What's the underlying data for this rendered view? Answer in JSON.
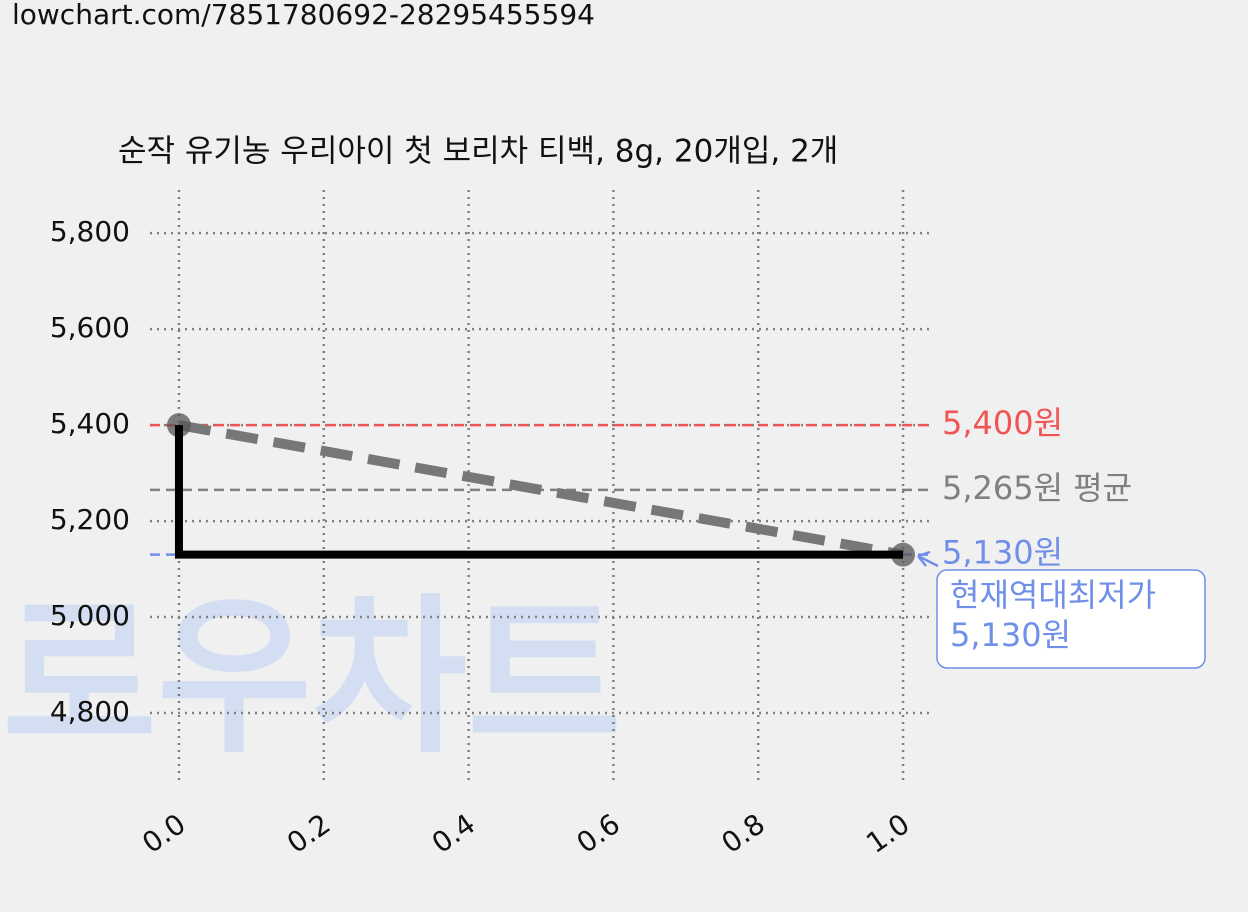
{
  "url": "lowchart.com/7851780692-28295455594",
  "chart_data": {
    "type": "line",
    "title": "순작 유기농 우리아이 첫 보리차 티백, 8g, 20개입, 2개",
    "watermark": "로우차트",
    "series": [
      {
        "color": "#777777",
        "style": "dashed",
        "markers": true,
        "x": [
          0,
          1
        ],
        "values": [
          5400,
          5130
        ]
      },
      {
        "color": "#000000",
        "style": "solid",
        "markers": false,
        "x": [
          0,
          0,
          1
        ],
        "values": [
          5400,
          5130,
          5130
        ]
      }
    ],
    "xlim": [
      -0.04,
      1.04
    ],
    "xticks": [
      {
        "value": 0,
        "label": "0.0"
      },
      {
        "value": 0.2,
        "label": "0.2"
      },
      {
        "value": 0.4,
        "label": "0.4"
      },
      {
        "value": 0.6,
        "label": "0.6"
      },
      {
        "value": 0.8,
        "label": "0.8"
      },
      {
        "value": 1,
        "label": "1.0"
      }
    ],
    "ylim": [
      4650,
      5890
    ],
    "yticks": [
      {
        "value": 4800,
        "label": "4,800"
      },
      {
        "value": 5000,
        "label": "5,000"
      },
      {
        "value": 5200,
        "label": "5,200"
      },
      {
        "value": 5400,
        "label": "5,400"
      },
      {
        "value": 5600,
        "label": "5,600"
      },
      {
        "value": 5800,
        "label": "5,800"
      }
    ],
    "grid": true,
    "hlines": [
      {
        "value": 5400,
        "label": "5,400원",
        "color": "#f05454"
      },
      {
        "value": 5265,
        "label": "5,265원 평균",
        "color": "#808080"
      },
      {
        "value": 5130,
        "label": "5,130원",
        "color": "#6f8fe8"
      }
    ],
    "annotation": {
      "lines": [
        "현재역대최저가",
        "5,130원"
      ],
      "color": "#6f8fe8"
    }
  }
}
